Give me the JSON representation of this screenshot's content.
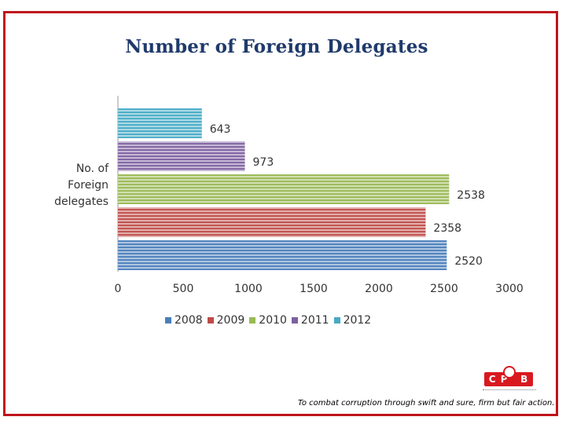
{
  "title": "Number of Foreign Delegates",
  "tagline": "To combat corruption through swift and sure, firm but fair action.",
  "logo": {
    "text": "CPIB"
  },
  "chart_data": {
    "type": "bar",
    "orientation": "horizontal",
    "title": "Number of Foreign Delegates",
    "ylabel": "No. of Foreign delegates",
    "xlim": [
      0,
      3000
    ],
    "xticks": [
      0,
      500,
      1000,
      1500,
      2000,
      2500,
      3000
    ],
    "grid": false,
    "legend_position": "bottom",
    "series": [
      {
        "name": "2008",
        "value": 2520,
        "color": "#4a7ebb"
      },
      {
        "name": "2009",
        "value": 2358,
        "color": "#be4b48"
      },
      {
        "name": "2010",
        "value": 2538,
        "color": "#98b954"
      },
      {
        "name": "2011",
        "value": 973,
        "color": "#7d60a0"
      },
      {
        "name": "2012",
        "value": 643,
        "color": "#46aac5"
      }
    ]
  }
}
